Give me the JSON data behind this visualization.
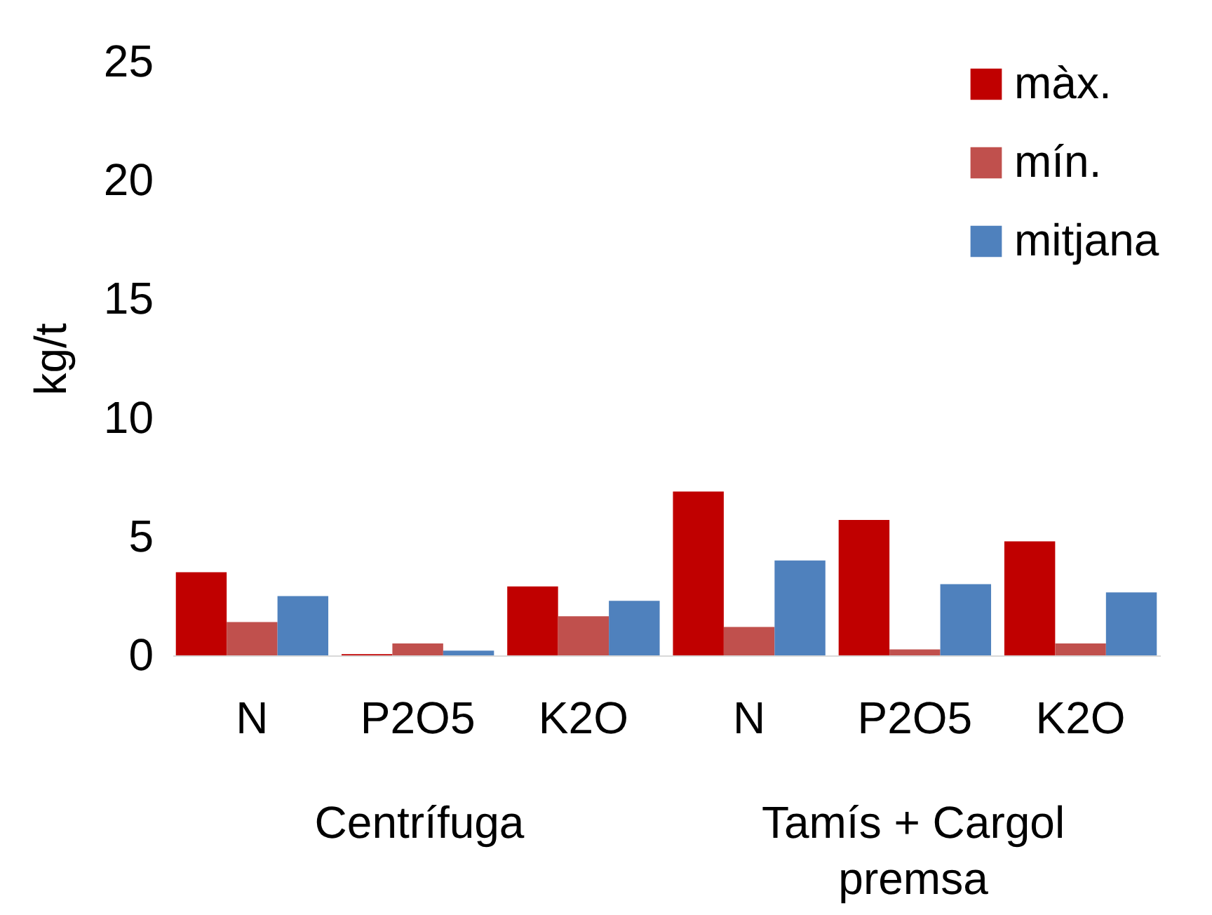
{
  "chart_data": {
    "type": "bar",
    "ylabel": "kg/t",
    "categories": [
      "N",
      "P2O5",
      "K2O",
      "N",
      "P2O5",
      "K2O"
    ],
    "annotations": [
      "Centrífuga",
      "Tamís + Cargol premsa"
    ],
    "series": [
      {
        "name": "màx.",
        "color": "#c00000",
        "values": [
          3.5,
          0.05,
          2.9,
          6.9,
          5.7,
          4.8
        ]
      },
      {
        "name": "mín.",
        "color": "#c0504d",
        "values": [
          1.4,
          0.5,
          1.65,
          1.2,
          0.25,
          0.5
        ]
      },
      {
        "name": "mitjana",
        "color": "#4f81bd",
        "values": [
          2.5,
          0.2,
          2.3,
          4.0,
          3.0,
          2.65
        ]
      }
    ],
    "ylim": [
      0,
      25
    ],
    "yticks": [
      0,
      5,
      10,
      15,
      20,
      25
    ],
    "grid": false,
    "legend": "top right"
  }
}
